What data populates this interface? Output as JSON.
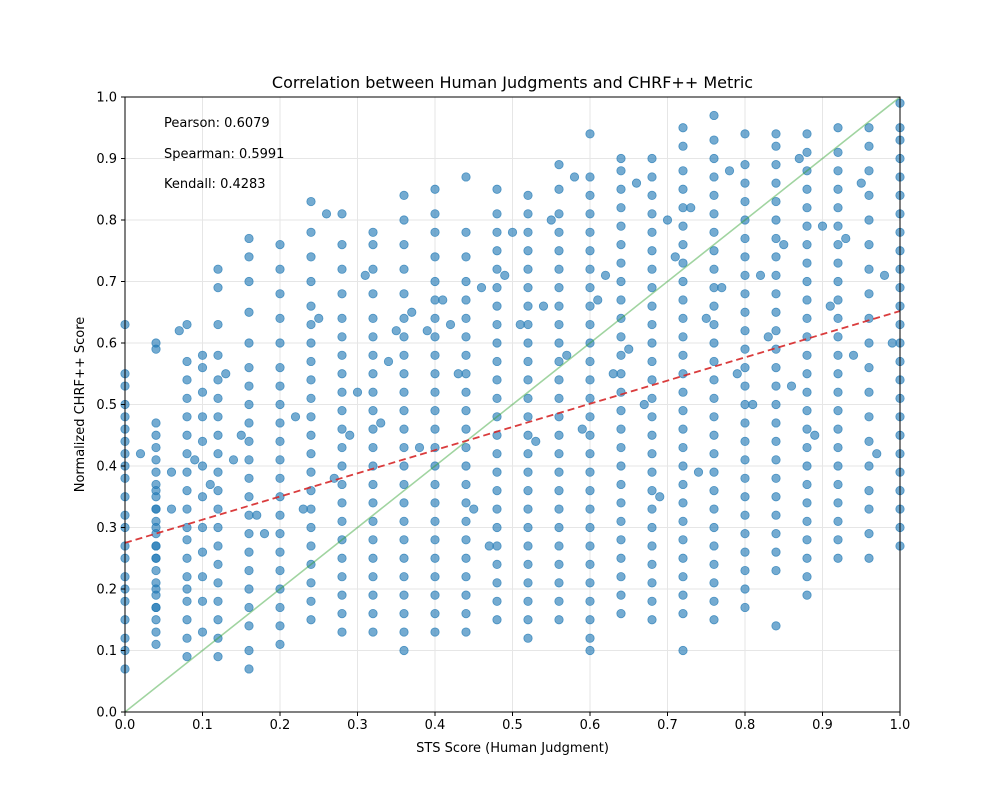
{
  "chart_data": {
    "type": "scatter",
    "title": "Correlation between Human Judgments and CHRF++ Metric",
    "xlabel": "STS Score (Human Judgment)",
    "ylabel": "Normalized CHRF++ Score",
    "xlim": [
      0.0,
      1.0
    ],
    "ylim": [
      0.0,
      1.0
    ],
    "x_ticks": [
      "0.0",
      "0.1",
      "0.2",
      "0.3",
      "0.4",
      "0.5",
      "0.6",
      "0.7",
      "0.8",
      "0.9",
      "1.0"
    ],
    "y_ticks": [
      "0.0",
      "0.1",
      "0.2",
      "0.3",
      "0.4",
      "0.5",
      "0.6",
      "0.7",
      "0.8",
      "0.9",
      "1.0"
    ],
    "grid": true,
    "point_color": "#1f77b4",
    "stats": [
      {
        "label": "Pearson: 0.6079"
      },
      {
        "label": "Spearman: 0.5991"
      },
      {
        "label": "Kendall: 0.4283"
      }
    ],
    "identity_line": {
      "x": [
        0.0,
        1.0
      ],
      "y": [
        0.0,
        1.0
      ],
      "color": "#2ca02c",
      "style": "solid"
    },
    "regression_line": {
      "x": [
        0.0,
        1.0
      ],
      "y": [
        0.275,
        0.652
      ],
      "color": "#d62728",
      "style": "dashed"
    },
    "columns": [
      {
        "x": 0.0,
        "y": [
          0.07,
          0.1,
          0.12,
          0.15,
          0.18,
          0.2,
          0.22,
          0.25,
          0.27,
          0.3,
          0.32,
          0.35,
          0.38,
          0.4,
          0.42,
          0.44,
          0.46,
          0.48,
          0.5,
          0.53,
          0.55,
          0.63
        ]
      },
      {
        "x": 0.04,
        "y": [
          0.17,
          0.2,
          0.25,
          0.27,
          0.3,
          0.33,
          0.36,
          0.6
        ]
      },
      {
        "x": 0.04,
        "y": [
          0.11,
          0.13,
          0.15,
          0.17,
          0.19,
          0.21,
          0.23,
          0.25,
          0.27,
          0.29,
          0.31,
          0.33,
          0.35,
          0.37,
          0.39,
          0.41,
          0.43,
          0.45,
          0.47,
          0.59
        ]
      },
      {
        "x": 0.08,
        "y": [
          0.09,
          0.12,
          0.15,
          0.18,
          0.2,
          0.22,
          0.25,
          0.28,
          0.3,
          0.33,
          0.36,
          0.39,
          0.42,
          0.45,
          0.48,
          0.51,
          0.54,
          0.57,
          0.63
        ]
      },
      {
        "x": 0.1,
        "y": [
          0.13,
          0.18,
          0.22,
          0.26,
          0.3,
          0.35,
          0.4,
          0.44,
          0.48,
          0.52,
          0.56,
          0.58
        ]
      },
      {
        "x": 0.12,
        "y": [
          0.09,
          0.12,
          0.15,
          0.18,
          0.21,
          0.24,
          0.27,
          0.3,
          0.33,
          0.36,
          0.39,
          0.42,
          0.45,
          0.48,
          0.51,
          0.54,
          0.58,
          0.63,
          0.69,
          0.72
        ]
      },
      {
        "x": 0.16,
        "y": [
          0.07,
          0.1,
          0.14,
          0.17,
          0.2,
          0.23,
          0.26,
          0.29,
          0.32,
          0.35,
          0.38,
          0.41,
          0.44,
          0.47,
          0.5,
          0.53,
          0.56,
          0.6,
          0.65,
          0.7,
          0.74,
          0.77
        ]
      },
      {
        "x": 0.2,
        "y": [
          0.11,
          0.14,
          0.17,
          0.2,
          0.23,
          0.26,
          0.29,
          0.32,
          0.35,
          0.38,
          0.41,
          0.44,
          0.47,
          0.5,
          0.53,
          0.56,
          0.6,
          0.64,
          0.68,
          0.72,
          0.76
        ]
      },
      {
        "x": 0.24,
        "y": [
          0.15,
          0.18,
          0.21,
          0.24,
          0.27,
          0.3,
          0.33,
          0.36,
          0.39,
          0.42,
          0.45,
          0.48,
          0.51,
          0.54,
          0.57,
          0.6,
          0.63,
          0.66,
          0.7,
          0.74,
          0.78,
          0.83
        ]
      },
      {
        "x": 0.28,
        "y": [
          0.13,
          0.16,
          0.19,
          0.22,
          0.25,
          0.28,
          0.31,
          0.34,
          0.37,
          0.4,
          0.43,
          0.46,
          0.49,
          0.52,
          0.55,
          0.58,
          0.61,
          0.64,
          0.68,
          0.72,
          0.76,
          0.81
        ]
      },
      {
        "x": 0.32,
        "y": [
          0.13,
          0.16,
          0.19,
          0.22,
          0.25,
          0.28,
          0.31,
          0.34,
          0.37,
          0.4,
          0.43,
          0.46,
          0.49,
          0.52,
          0.55,
          0.58,
          0.61,
          0.64,
          0.68,
          0.72,
          0.76,
          0.78
        ]
      },
      {
        "x": 0.36,
        "y": [
          0.1,
          0.13,
          0.16,
          0.19,
          0.22,
          0.25,
          0.28,
          0.31,
          0.34,
          0.37,
          0.4,
          0.43,
          0.46,
          0.49,
          0.52,
          0.55,
          0.58,
          0.61,
          0.64,
          0.68,
          0.72,
          0.76,
          0.8,
          0.84
        ]
      },
      {
        "x": 0.4,
        "y": [
          0.13,
          0.16,
          0.19,
          0.22,
          0.25,
          0.28,
          0.31,
          0.34,
          0.37,
          0.4,
          0.43,
          0.46,
          0.49,
          0.52,
          0.55,
          0.58,
          0.61,
          0.64,
          0.67,
          0.7,
          0.74,
          0.78,
          0.81,
          0.85
        ]
      },
      {
        "x": 0.44,
        "y": [
          0.13,
          0.16,
          0.19,
          0.22,
          0.25,
          0.28,
          0.31,
          0.34,
          0.37,
          0.4,
          0.43,
          0.46,
          0.49,
          0.52,
          0.55,
          0.58,
          0.61,
          0.64,
          0.67,
          0.7,
          0.74,
          0.78,
          0.87
        ]
      },
      {
        "x": 0.48,
        "y": [
          0.15,
          0.18,
          0.21,
          0.24,
          0.27,
          0.3,
          0.33,
          0.36,
          0.39,
          0.42,
          0.45,
          0.48,
          0.51,
          0.54,
          0.57,
          0.6,
          0.63,
          0.66,
          0.69,
          0.72,
          0.75,
          0.78,
          0.81,
          0.85
        ]
      },
      {
        "x": 0.52,
        "y": [
          0.12,
          0.15,
          0.18,
          0.21,
          0.24,
          0.27,
          0.3,
          0.33,
          0.36,
          0.39,
          0.42,
          0.45,
          0.48,
          0.51,
          0.54,
          0.57,
          0.6,
          0.63,
          0.66,
          0.69,
          0.72,
          0.75,
          0.78,
          0.81,
          0.84
        ]
      },
      {
        "x": 0.56,
        "y": [
          0.15,
          0.18,
          0.21,
          0.24,
          0.27,
          0.3,
          0.33,
          0.36,
          0.39,
          0.42,
          0.45,
          0.48,
          0.51,
          0.54,
          0.57,
          0.6,
          0.63,
          0.66,
          0.69,
          0.72,
          0.75,
          0.78,
          0.81,
          0.85,
          0.89
        ]
      },
      {
        "x": 0.6,
        "y": [
          0.1,
          0.12,
          0.15,
          0.18,
          0.21,
          0.24,
          0.27,
          0.3,
          0.33,
          0.36,
          0.39,
          0.42,
          0.45,
          0.48,
          0.51,
          0.54,
          0.57,
          0.6,
          0.63,
          0.66,
          0.69,
          0.72,
          0.75,
          0.78,
          0.81,
          0.84,
          0.87,
          0.94
        ]
      },
      {
        "x": 0.64,
        "y": [
          0.16,
          0.19,
          0.22,
          0.25,
          0.28,
          0.31,
          0.34,
          0.37,
          0.4,
          0.43,
          0.46,
          0.49,
          0.52,
          0.55,
          0.58,
          0.61,
          0.64,
          0.67,
          0.7,
          0.73,
          0.76,
          0.79,
          0.82,
          0.85,
          0.88,
          0.9
        ]
      },
      {
        "x": 0.68,
        "y": [
          0.15,
          0.18,
          0.21,
          0.24,
          0.27,
          0.3,
          0.33,
          0.36,
          0.39,
          0.42,
          0.45,
          0.48,
          0.51,
          0.54,
          0.57,
          0.6,
          0.63,
          0.66,
          0.69,
          0.72,
          0.75,
          0.78,
          0.81,
          0.84,
          0.87,
          0.9
        ]
      },
      {
        "x": 0.72,
        "y": [
          0.1,
          0.16,
          0.19,
          0.22,
          0.25,
          0.28,
          0.31,
          0.34,
          0.37,
          0.4,
          0.43,
          0.46,
          0.49,
          0.52,
          0.55,
          0.58,
          0.61,
          0.64,
          0.67,
          0.7,
          0.73,
          0.76,
          0.79,
          0.82,
          0.85,
          0.88,
          0.92,
          0.95
        ]
      },
      {
        "x": 0.76,
        "y": [
          0.15,
          0.18,
          0.21,
          0.24,
          0.27,
          0.3,
          0.33,
          0.36,
          0.39,
          0.42,
          0.45,
          0.48,
          0.51,
          0.54,
          0.57,
          0.6,
          0.63,
          0.66,
          0.69,
          0.72,
          0.75,
          0.78,
          0.81,
          0.84,
          0.87,
          0.9,
          0.93,
          0.97
        ]
      },
      {
        "x": 0.8,
        "y": [
          0.17,
          0.2,
          0.23,
          0.26,
          0.29,
          0.32,
          0.35,
          0.38,
          0.41,
          0.44,
          0.47,
          0.5,
          0.53,
          0.56,
          0.59,
          0.62,
          0.65,
          0.68,
          0.71,
          0.74,
          0.77,
          0.8,
          0.83,
          0.86,
          0.89,
          0.94
        ]
      },
      {
        "x": 0.84,
        "y": [
          0.14,
          0.23,
          0.26,
          0.29,
          0.32,
          0.35,
          0.38,
          0.41,
          0.44,
          0.47,
          0.5,
          0.53,
          0.56,
          0.59,
          0.62,
          0.65,
          0.68,
          0.71,
          0.74,
          0.77,
          0.8,
          0.83,
          0.86,
          0.89,
          0.92,
          0.94
        ]
      },
      {
        "x": 0.88,
        "y": [
          0.19,
          0.22,
          0.25,
          0.28,
          0.31,
          0.34,
          0.37,
          0.4,
          0.43,
          0.46,
          0.49,
          0.52,
          0.55,
          0.58,
          0.61,
          0.64,
          0.67,
          0.7,
          0.73,
          0.76,
          0.79,
          0.82,
          0.85,
          0.88,
          0.91,
          0.94
        ]
      },
      {
        "x": 0.92,
        "y": [
          0.25,
          0.28,
          0.31,
          0.34,
          0.37,
          0.4,
          0.43,
          0.46,
          0.49,
          0.52,
          0.55,
          0.58,
          0.61,
          0.64,
          0.67,
          0.7,
          0.73,
          0.76,
          0.79,
          0.82,
          0.85,
          0.88,
          0.91,
          0.95
        ]
      },
      {
        "x": 0.96,
        "y": [
          0.25,
          0.29,
          0.33,
          0.36,
          0.4,
          0.44,
          0.48,
          0.52,
          0.56,
          0.6,
          0.64,
          0.68,
          0.72,
          0.76,
          0.8,
          0.84,
          0.88,
          0.92,
          0.95
        ]
      },
      {
        "x": 1.0,
        "y": [
          0.27,
          0.3,
          0.33,
          0.36,
          0.39,
          0.42,
          0.45,
          0.48,
          0.51,
          0.54,
          0.57,
          0.6,
          0.63,
          0.66,
          0.69,
          0.72,
          0.75,
          0.78,
          0.81,
          0.84,
          0.87,
          0.9,
          0.93,
          0.95,
          0.99
        ]
      }
    ],
    "extra_points": [
      {
        "x": 0.02,
        "y": 0.42
      },
      {
        "x": 0.06,
        "y": 0.33
      },
      {
        "x": 0.06,
        "y": 0.39
      },
      {
        "x": 0.07,
        "y": 0.62
      },
      {
        "x": 0.09,
        "y": 0.41
      },
      {
        "x": 0.11,
        "y": 0.37
      },
      {
        "x": 0.13,
        "y": 0.55
      },
      {
        "x": 0.14,
        "y": 0.41
      },
      {
        "x": 0.15,
        "y": 0.45
      },
      {
        "x": 0.17,
        "y": 0.32
      },
      {
        "x": 0.18,
        "y": 0.29
      },
      {
        "x": 0.22,
        "y": 0.48
      },
      {
        "x": 0.23,
        "y": 0.33
      },
      {
        "x": 0.25,
        "y": 0.64
      },
      {
        "x": 0.26,
        "y": 0.81
      },
      {
        "x": 0.27,
        "y": 0.38
      },
      {
        "x": 0.29,
        "y": 0.45
      },
      {
        "x": 0.3,
        "y": 0.52
      },
      {
        "x": 0.31,
        "y": 0.71
      },
      {
        "x": 0.33,
        "y": 0.47
      },
      {
        "x": 0.34,
        "y": 0.57
      },
      {
        "x": 0.35,
        "y": 0.62
      },
      {
        "x": 0.37,
        "y": 0.65
      },
      {
        "x": 0.38,
        "y": 0.43
      },
      {
        "x": 0.39,
        "y": 0.62
      },
      {
        "x": 0.41,
        "y": 0.67
      },
      {
        "x": 0.42,
        "y": 0.63
      },
      {
        "x": 0.43,
        "y": 0.55
      },
      {
        "x": 0.45,
        "y": 0.33
      },
      {
        "x": 0.46,
        "y": 0.69
      },
      {
        "x": 0.47,
        "y": 0.27
      },
      {
        "x": 0.49,
        "y": 0.71
      },
      {
        "x": 0.5,
        "y": 0.78
      },
      {
        "x": 0.51,
        "y": 0.63
      },
      {
        "x": 0.53,
        "y": 0.44
      },
      {
        "x": 0.54,
        "y": 0.66
      },
      {
        "x": 0.55,
        "y": 0.8
      },
      {
        "x": 0.57,
        "y": 0.58
      },
      {
        "x": 0.58,
        "y": 0.87
      },
      {
        "x": 0.59,
        "y": 0.46
      },
      {
        "x": 0.61,
        "y": 0.67
      },
      {
        "x": 0.62,
        "y": 0.71
      },
      {
        "x": 0.63,
        "y": 0.55
      },
      {
        "x": 0.65,
        "y": 0.59
      },
      {
        "x": 0.66,
        "y": 0.86
      },
      {
        "x": 0.67,
        "y": 0.5
      },
      {
        "x": 0.69,
        "y": 0.35
      },
      {
        "x": 0.7,
        "y": 0.8
      },
      {
        "x": 0.71,
        "y": 0.74
      },
      {
        "x": 0.73,
        "y": 0.82
      },
      {
        "x": 0.74,
        "y": 0.39
      },
      {
        "x": 0.75,
        "y": 0.64
      },
      {
        "x": 0.77,
        "y": 0.69
      },
      {
        "x": 0.78,
        "y": 0.88
      },
      {
        "x": 0.79,
        "y": 0.55
      },
      {
        "x": 0.81,
        "y": 0.5
      },
      {
        "x": 0.82,
        "y": 0.71
      },
      {
        "x": 0.83,
        "y": 0.61
      },
      {
        "x": 0.85,
        "y": 0.76
      },
      {
        "x": 0.86,
        "y": 0.53
      },
      {
        "x": 0.87,
        "y": 0.9
      },
      {
        "x": 0.89,
        "y": 0.45
      },
      {
        "x": 0.9,
        "y": 0.79
      },
      {
        "x": 0.91,
        "y": 0.66
      },
      {
        "x": 0.93,
        "y": 0.77
      },
      {
        "x": 0.94,
        "y": 0.58
      },
      {
        "x": 0.95,
        "y": 0.86
      },
      {
        "x": 0.97,
        "y": 0.42
      },
      {
        "x": 0.98,
        "y": 0.71
      },
      {
        "x": 0.99,
        "y": 0.6
      }
    ]
  }
}
